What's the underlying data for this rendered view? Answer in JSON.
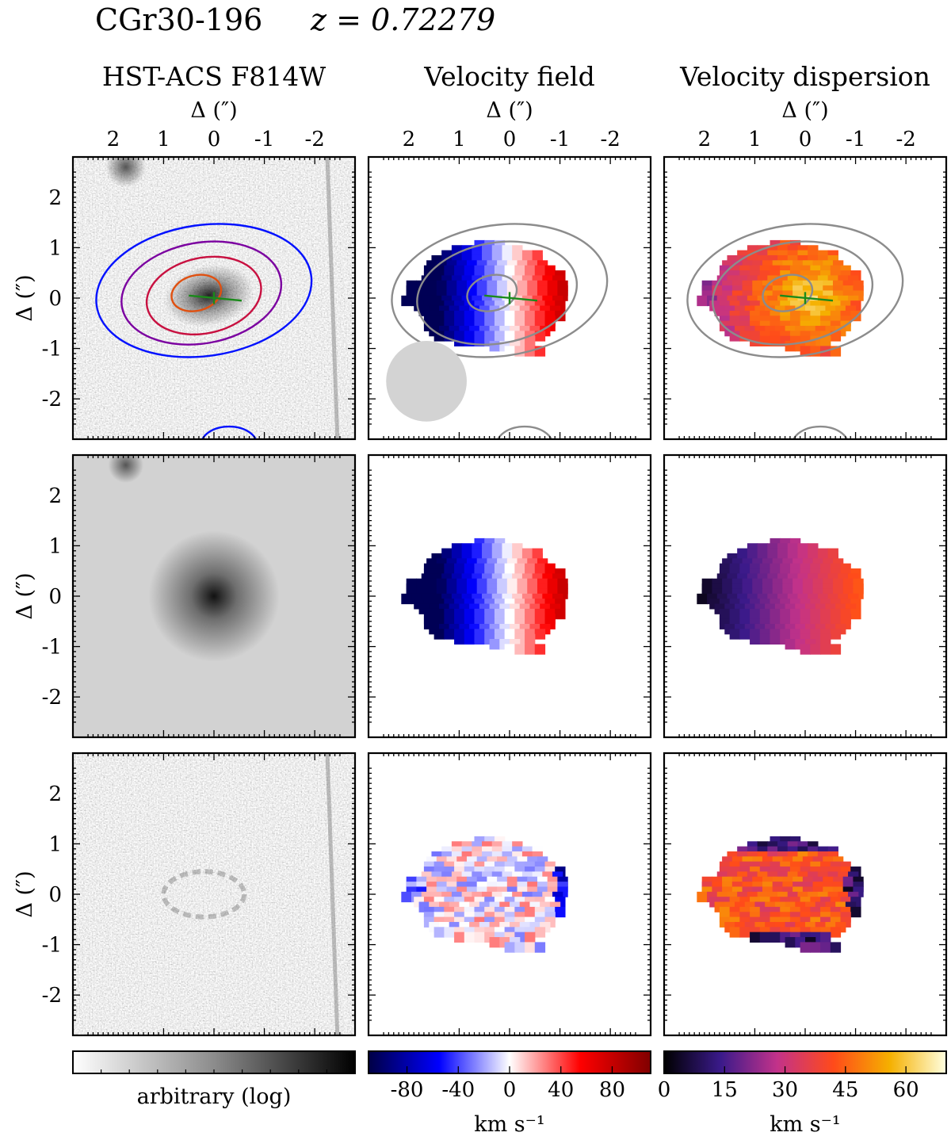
{
  "header": {
    "object": "CGr30-196",
    "redshift_label": "z = 0.72279"
  },
  "columns": [
    {
      "title": "HST-ACS F814W"
    },
    {
      "title": "Velocity field"
    },
    {
      "title": "Velocity dispersion"
    }
  ],
  "axis": {
    "label": "Δ  (″)",
    "ticks": [
      "2",
      "1",
      "0",
      "-1",
      "-2"
    ]
  },
  "colorbars": [
    {
      "label": "arbitrary (log)",
      "ticks": [],
      "colors": [
        "#ffffff",
        "#8c8c8c",
        "#000000"
      ]
    },
    {
      "label": "km s⁻¹",
      "ticks": [
        "-80",
        "-40",
        "0",
        "40",
        "80"
      ],
      "range": [
        -110,
        110
      ],
      "colors": [
        "#000044",
        "#0000ff",
        "#ffffff",
        "#ff0000",
        "#800000"
      ]
    },
    {
      "label": "km s⁻¹",
      "ticks": [
        "0",
        "15",
        "30",
        "45",
        "60"
      ],
      "range": [
        0,
        70
      ],
      "colors": [
        "#000000",
        "#3a1a8a",
        "#c2328a",
        "#ff4a1a",
        "#f5b000",
        "#ffffe0"
      ]
    }
  ],
  "chart_data": [
    {
      "type": "heatmap",
      "panel": "row1-col1",
      "description_source": "HST-ACS F814W image with contours",
      "x_range": [
        2.8,
        -2.8
      ],
      "y_range": [
        -2.8,
        2.8
      ],
      "ticks": [
        2,
        1,
        0,
        -1,
        -2
      ],
      "contours": 4,
      "contour_colors": [
        "#0010ff",
        "#7b00a0",
        "#c81040",
        "#e05010"
      ]
    },
    {
      "type": "heatmap",
      "panel": "row1-col2",
      "description_source": "Velocity field",
      "x_range": [
        2.8,
        -2.8
      ],
      "y_range": [
        -2.8,
        2.8
      ],
      "value_range": [
        -110,
        110
      ]
    },
    {
      "type": "heatmap",
      "panel": "row1-col3",
      "description_source": "Velocity dispersion",
      "x_range": [
        2.8,
        -2.8
      ],
      "y_range": [
        -2.8,
        2.8
      ],
      "value_range": [
        0,
        70
      ]
    },
    {
      "type": "heatmap",
      "panel": "row2-col1",
      "x_range": [
        2.8,
        -2.8
      ],
      "y_range": [
        -2.8,
        2.8
      ]
    },
    {
      "type": "heatmap",
      "panel": "row2-col2",
      "x_range": [
        2.8,
        -2.8
      ],
      "y_range": [
        -2.8,
        2.8
      ],
      "value_range": [
        -110,
        110
      ]
    },
    {
      "type": "heatmap",
      "panel": "row2-col3",
      "x_range": [
        2.8,
        -2.8
      ],
      "y_range": [
        -2.8,
        2.8
      ],
      "value_range": [
        0,
        70
      ]
    },
    {
      "type": "heatmap",
      "panel": "row3-col1",
      "x_range": [
        2.8,
        -2.8
      ],
      "y_range": [
        -2.8,
        2.8
      ]
    },
    {
      "type": "heatmap",
      "panel": "row3-col2",
      "x_range": [
        2.8,
        -2.8
      ],
      "y_range": [
        -2.8,
        2.8
      ],
      "value_range": [
        -110,
        110
      ]
    },
    {
      "type": "heatmap",
      "panel": "row3-col3",
      "x_range": [
        2.8,
        -2.8
      ],
      "y_range": [
        -2.8,
        2.8
      ],
      "value_range": [
        0,
        70
      ]
    }
  ]
}
